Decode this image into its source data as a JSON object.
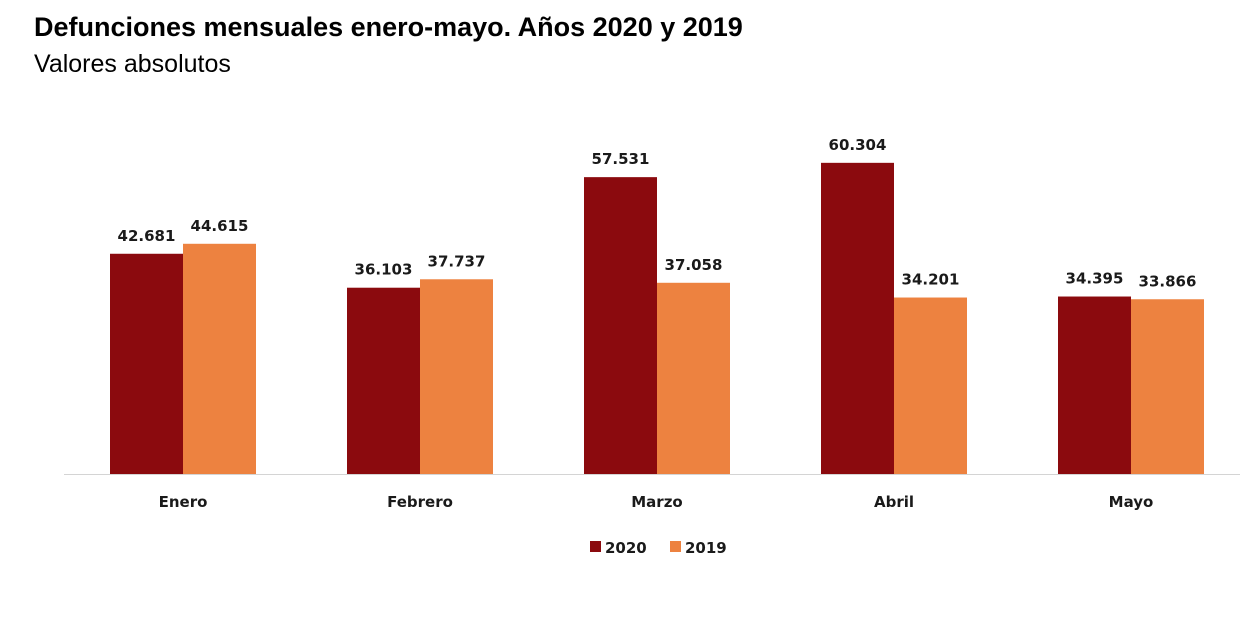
{
  "chart_data": {
    "type": "bar",
    "title": "Defunciones mensuales enero-mayo. Años 2020 y 2019",
    "subtitle": "Valores absolutos",
    "categories": [
      "Enero",
      "Febrero",
      "Marzo",
      "Abril",
      "Mayo"
    ],
    "series": [
      {
        "name": "2020",
        "color": "#8b0a0e",
        "values": [
          42681,
          36103,
          57531,
          60304,
          34395
        ],
        "labels": [
          "42.681",
          "36.103",
          "57.531",
          "60.304",
          "34.395"
        ]
      },
      {
        "name": "2019",
        "color": "#ed8240",
        "values": [
          44615,
          37737,
          37058,
          34201,
          33866
        ],
        "labels": [
          "44.615",
          "37.737",
          "37.058",
          "34.201",
          "33.866"
        ]
      }
    ],
    "xlabel": "",
    "ylabel": "",
    "ylim": [
      0,
      80000
    ],
    "grid": false,
    "legend": "bottom-center"
  }
}
